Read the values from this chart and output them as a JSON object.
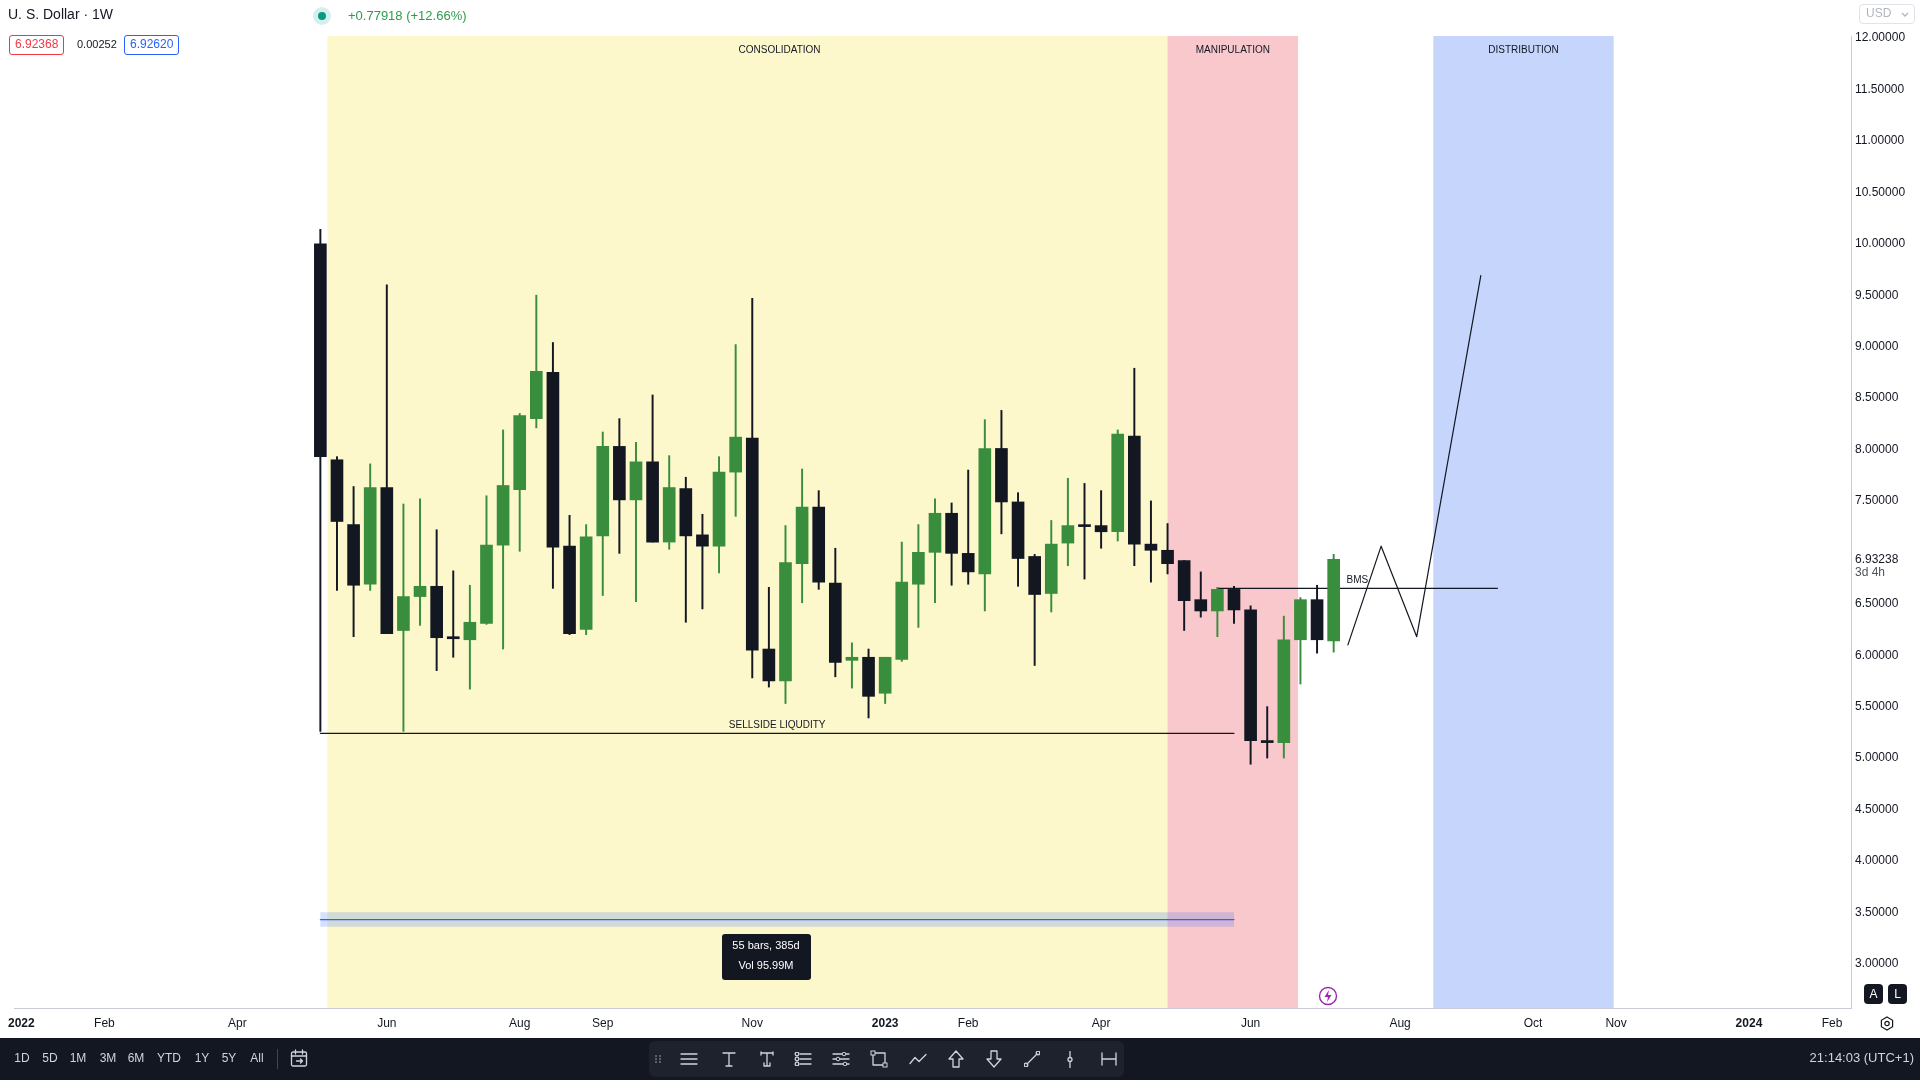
{
  "chart_data": {
    "type": "candlestick",
    "title": "U. S. Dollar · 1W",
    "x": [
      "2022-05-09",
      "2022-05-16",
      "2022-05-23",
      "2022-05-30",
      "2022-06-06",
      "2022-06-13",
      "2022-06-20",
      "2022-06-27",
      "2022-07-04",
      "2022-07-11",
      "2022-07-18",
      "2022-07-25",
      "2022-08-01",
      "2022-08-08",
      "2022-08-15",
      "2022-08-22",
      "2022-08-29",
      "2022-09-05",
      "2022-09-12",
      "2022-09-19",
      "2022-09-26",
      "2022-10-03",
      "2022-10-10",
      "2022-10-17",
      "2022-10-24",
      "2022-10-31",
      "2022-11-07",
      "2022-11-14",
      "2022-11-21",
      "2022-11-28",
      "2022-12-05",
      "2022-12-12",
      "2022-12-19",
      "2022-12-26",
      "2023-01-02",
      "2023-01-09",
      "2023-01-16",
      "2023-01-23",
      "2023-01-30",
      "2023-02-06",
      "2023-02-13",
      "2023-02-20",
      "2023-02-27",
      "2023-03-06",
      "2023-03-13",
      "2023-03-20",
      "2023-03-27",
      "2023-04-03",
      "2023-04-10",
      "2023-04-17",
      "2023-04-24",
      "2023-05-01",
      "2023-05-08",
      "2023-05-15",
      "2023-05-22",
      "2023-05-29",
      "2023-06-05",
      "2023-06-12",
      "2023-06-19",
      "2023-06-26",
      "2023-07-03",
      "2023-07-10"
    ],
    "ohlc": [
      [
        10.0,
        10.14,
        5.26,
        7.93
      ],
      [
        7.9,
        7.93,
        6.63,
        7.3
      ],
      [
        7.27,
        7.64,
        6.18,
        6.68
      ],
      [
        6.69,
        7.86,
        6.63,
        7.63
      ],
      [
        7.63,
        9.6,
        6.21,
        6.21
      ],
      [
        6.24,
        7.47,
        5.26,
        6.57
      ],
      [
        6.57,
        7.52,
        6.29,
        6.67
      ],
      [
        6.67,
        7.22,
        5.85,
        6.17
      ],
      [
        6.18,
        6.82,
        5.98,
        6.16
      ],
      [
        6.15,
        6.68,
        5.67,
        6.32
      ],
      [
        6.31,
        7.55,
        6.3,
        7.07
      ],
      [
        7.07,
        8.19,
        6.06,
        7.65
      ],
      [
        7.61,
        8.35,
        7.01,
        8.33
      ],
      [
        8.3,
        9.5,
        8.21,
        8.76
      ],
      [
        8.75,
        9.04,
        6.65,
        7.05
      ],
      [
        7.06,
        7.36,
        6.2,
        6.21
      ],
      [
        6.25,
        7.27,
        6.2,
        7.15
      ],
      [
        7.16,
        8.17,
        6.58,
        8.03
      ],
      [
        8.03,
        8.3,
        6.99,
        7.51
      ],
      [
        7.51,
        8.07,
        6.52,
        7.88
      ],
      [
        7.88,
        8.53,
        7.1,
        7.1
      ],
      [
        7.1,
        7.94,
        7.03,
        7.63
      ],
      [
        7.62,
        7.73,
        6.32,
        7.16
      ],
      [
        7.17,
        7.37,
        6.45,
        7.06
      ],
      [
        7.06,
        7.93,
        6.8,
        7.78
      ],
      [
        7.78,
        9.02,
        7.35,
        8.12
      ],
      [
        8.11,
        9.47,
        5.78,
        6.05
      ],
      [
        6.06,
        6.66,
        5.69,
        5.75
      ],
      [
        5.75,
        7.26,
        5.53,
        6.9
      ],
      [
        6.89,
        7.81,
        6.51,
        7.44
      ],
      [
        7.44,
        7.6,
        6.64,
        6.71
      ],
      [
        6.7,
        7.04,
        5.79,
        5.93
      ],
      [
        5.95,
        6.12,
        5.68,
        5.98
      ],
      [
        5.98,
        6.06,
        5.39,
        5.6
      ],
      [
        5.63,
        5.98,
        5.53,
        5.98
      ],
      [
        5.96,
        7.1,
        5.94,
        6.71
      ],
      [
        6.69,
        7.27,
        6.27,
        7.0
      ],
      [
        7.0,
        7.52,
        6.51,
        7.38
      ],
      [
        7.38,
        7.48,
        6.68,
        6.99
      ],
      [
        6.99,
        7.8,
        6.69,
        6.81
      ],
      [
        6.79,
        8.29,
        6.43,
        8.01
      ],
      [
        8.01,
        8.38,
        7.18,
        7.49
      ],
      [
        7.49,
        7.58,
        6.67,
        6.94
      ],
      [
        6.96,
        6.98,
        5.9,
        6.59
      ],
      [
        6.6,
        7.31,
        6.42,
        7.08
      ],
      [
        7.09,
        7.72,
        6.87,
        7.26
      ],
      [
        7.26,
        7.67,
        6.74,
        7.25
      ],
      [
        7.26,
        7.6,
        7.04,
        7.2
      ],
      [
        7.2,
        8.19,
        7.11,
        8.15
      ],
      [
        8.13,
        8.79,
        6.87,
        7.08
      ],
      [
        7.08,
        7.5,
        6.71,
        7.02
      ],
      [
        7.02,
        7.28,
        6.79,
        6.89
      ],
      [
        6.92,
        6.92,
        6.24,
        6.53
      ],
      [
        6.54,
        6.81,
        6.37,
        6.43
      ],
      [
        6.43,
        6.66,
        6.18,
        6.64
      ],
      [
        6.64,
        6.67,
        6.31,
        6.44
      ],
      [
        6.44,
        6.48,
        4.94,
        5.17
      ],
      [
        5.17,
        5.5,
        5.0,
        5.15
      ],
      [
        5.15,
        6.38,
        5.0,
        6.15
      ],
      [
        6.15,
        6.56,
        5.72,
        6.54
      ],
      [
        6.54,
        6.68,
        6.02,
        6.15
      ],
      [
        6.14,
        6.98,
        6.03,
        6.93238
      ]
    ],
    "colors": [
      "#131722",
      "#131722",
      "#131722",
      "#388e3c",
      "#131722",
      "#388e3c",
      "#388e3c",
      "#131722",
      "#131722",
      "#388e3c",
      "#388e3c",
      "#388e3c",
      "#388e3c",
      "#388e3c",
      "#131722",
      "#131722",
      "#388e3c",
      "#388e3c",
      "#131722",
      "#388e3c",
      "#131722",
      "#388e3c",
      "#131722",
      "#131722",
      "#388e3c",
      "#388e3c",
      "#131722",
      "#131722",
      "#388e3c",
      "#388e3c",
      "#131722",
      "#131722",
      "#388e3c",
      "#131722",
      "#388e3c",
      "#388e3c",
      "#388e3c",
      "#388e3c",
      "#131722",
      "#131722",
      "#388e3c",
      "#131722",
      "#131722",
      "#131722",
      "#388e3c",
      "#388e3c",
      "#131722",
      "#131722",
      "#388e3c",
      "#131722",
      "#131722",
      "#131722",
      "#131722",
      "#131722",
      "#388e3c",
      "#131722",
      "#131722",
      "#131722",
      "#388e3c",
      "#388e3c",
      "#131722",
      "#388e3c"
    ],
    "series": [
      {
        "type": "line",
        "name": "SELLSIDE LIQUDITY",
        "color": "#131722",
        "x": [
          "2022-05-09",
          "2023-05-29"
        ],
        "values": [
          5.24,
          5.24
        ]
      },
      {
        "type": "line",
        "name": "BMS",
        "color": "#131722",
        "x": [
          "2023-05-22",
          "2023-09-17"
        ],
        "values": [
          6.65,
          6.65
        ]
      },
      {
        "type": "line",
        "color": "#131722",
        "x": [
          "2023-07-16",
          "2023-07-30",
          "2023-08-14",
          "2023-09-10"
        ],
        "values": [
          6.1,
          7.06,
          6.18,
          9.69
        ]
      },
      {
        "type": "line",
        "color": "#2962ff",
        "x": [
          "2022-05-09",
          "2023-05-29"
        ],
        "values": [
          3.43,
          3.43
        ],
        "lower": [
          3.36,
          3.36
        ],
        "upper": [
          3.5,
          3.5
        ]
      }
    ],
    "bands": [
      {
        "axis": "x",
        "from": "2022-05-12",
        "to": "2023-05-28",
        "label": "CONSOLIDATION",
        "color": "#fcf8cc"
      },
      {
        "axis": "x",
        "from": "2023-05-01",
        "to": "2023-06-25",
        "label": "MANIPULATION",
        "color": "#f9c8cc"
      },
      {
        "axis": "x",
        "from": "2023-08-21",
        "to": "2023-11-05",
        "label": "DISTRIBUTION",
        "color": "#c5d5fb"
      }
    ],
    "xlim": [
      "2021-12-31",
      "2024-02-13"
    ],
    "xticks": [
      {
        "value": "2022-01-03",
        "label": "2022"
      },
      {
        "value": "2022-02-07",
        "label": "Feb"
      },
      {
        "value": "2022-04-04",
        "label": "Apr"
      },
      {
        "value": "2022-06-06",
        "label": "Jun"
      },
      {
        "value": "2022-08-01",
        "label": "Aug"
      },
      {
        "value": "2022-09-05",
        "label": "Sep"
      },
      {
        "value": "2022-11-07",
        "label": "Nov"
      },
      {
        "value": "2023-01-02",
        "label": "2023"
      },
      {
        "value": "2023-02-06",
        "label": "Feb"
      },
      {
        "value": "2023-04-03",
        "label": "Apr"
      },
      {
        "value": "2023-06-05",
        "label": "Jun"
      },
      {
        "value": "2023-08-07",
        "label": "Aug"
      },
      {
        "value": "2023-10-02",
        "label": "Oct"
      },
      {
        "value": "2023-11-06",
        "label": "Nov"
      },
      {
        "value": "2024-01-01",
        "label": "2024"
      },
      {
        "value": "2024-02-05",
        "label": "Feb"
      }
    ],
    "ylim": [
      2.57,
      12.02
    ],
    "yticks": [
      {
        "value": 3,
        "label": "3.00000"
      },
      {
        "value": 3.5,
        "label": "3.50000"
      },
      {
        "value": 4,
        "label": "4.00000"
      },
      {
        "value": 4.5,
        "label": "4.50000"
      },
      {
        "value": 5,
        "label": "5.00000"
      },
      {
        "value": 5.5,
        "label": "5.50000"
      },
      {
        "value": 6,
        "label": "6.00000"
      },
      {
        "value": 6.5,
        "label": "6.50000"
      },
      {
        "value": 6.93238,
        "label": "6.93238"
      },
      {
        "value": 7.5,
        "label": "7.50000"
      },
      {
        "value": 8,
        "label": "8.00000"
      },
      {
        "value": 8.5,
        "label": "8.50000"
      },
      {
        "value": 9,
        "label": "9.00000"
      },
      {
        "value": 9.5,
        "label": "9.50000"
      },
      {
        "value": 10,
        "label": "10.00000"
      },
      {
        "value": 10.5,
        "label": "10.50000"
      },
      {
        "value": 11,
        "label": "11.00000"
      },
      {
        "value": 11.5,
        "label": "11.50000"
      },
      {
        "value": 12,
        "label": "12.00000"
      }
    ],
    "marker": "none",
    "annotations": [
      "6.92368",
      "0.00252",
      "6.92620",
      "+0.77918 (+12.66%)",
      "55 bars, 385d",
      "Vol 95.99M",
      "3d 4h",
      "USD",
      "A",
      "L",
      "1D",
      "5D",
      "1M",
      "3M",
      "6M",
      "YTD",
      "1Y",
      "5Y",
      "All",
      "21:14:03 (UTC+1)"
    ]
  }
}
